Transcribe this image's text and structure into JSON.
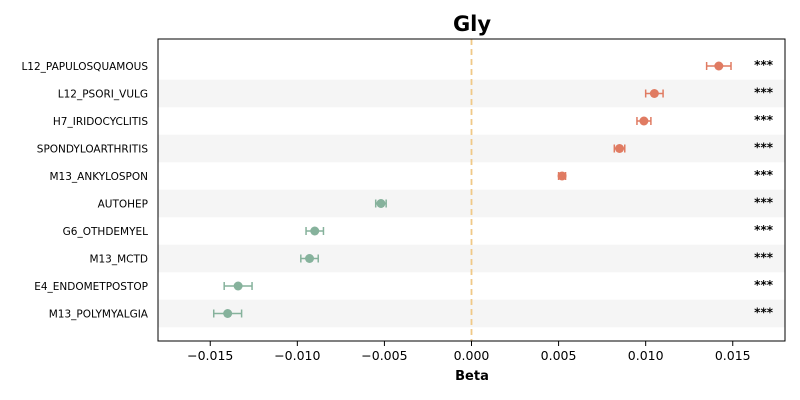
{
  "chart_data": {
    "type": "scatter",
    "title": "Gly",
    "xlabel": "Beta",
    "xlim": [
      -0.018,
      0.018
    ],
    "x_ticks": [
      "−0.015",
      "−0.010",
      "−0.005",
      "0.000",
      "0.005",
      "0.010",
      "0.015"
    ],
    "x_tick_values": [
      -0.015,
      -0.01,
      -0.005,
      0.0,
      0.005,
      0.01,
      0.015
    ],
    "reference_line": 0,
    "grid": false,
    "positive_color": "#e07b62",
    "negative_color": "#86b29c",
    "reference_color": "#f0c987",
    "rows": [
      {
        "label": "L12_PAPULOSQUAMOUS",
        "beta": 0.0142,
        "lo": 0.0135,
        "hi": 0.0149,
        "sig": "***"
      },
      {
        "label": "L12_PSORI_VULG",
        "beta": 0.0105,
        "lo": 0.01,
        "hi": 0.011,
        "sig": "***"
      },
      {
        "label": "H7_IRIDOCYCLITIS",
        "beta": 0.0099,
        "lo": 0.0095,
        "hi": 0.0103,
        "sig": "***"
      },
      {
        "label": "SPONDYLOARTHRITIS",
        "beta": 0.0085,
        "lo": 0.0082,
        "hi": 0.0088,
        "sig": "***"
      },
      {
        "label": "M13_ANKYLOSPON",
        "beta": 0.0052,
        "lo": 0.005,
        "hi": 0.0054,
        "sig": "***"
      },
      {
        "label": "AUTOHEP",
        "beta": -0.0052,
        "lo": -0.0055,
        "hi": -0.0049,
        "sig": "***"
      },
      {
        "label": "G6_OTHDEMYEL",
        "beta": -0.009,
        "lo": -0.0095,
        "hi": -0.0085,
        "sig": "***"
      },
      {
        "label": "M13_MCTD",
        "beta": -0.0093,
        "lo": -0.0098,
        "hi": -0.0088,
        "sig": "***"
      },
      {
        "label": "E4_ENDOMETPOSTOP",
        "beta": -0.0134,
        "lo": -0.0142,
        "hi": -0.0126,
        "sig": "***"
      },
      {
        "label": "M13_POLYMYALGIA",
        "beta": -0.014,
        "lo": -0.0148,
        "hi": -0.0132,
        "sig": "***"
      }
    ]
  }
}
